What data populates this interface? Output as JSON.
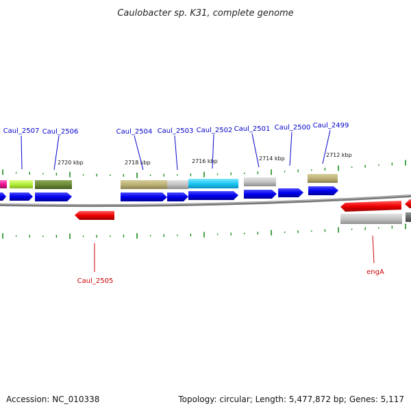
{
  "title": "Caulobacter sp. K31, complete genome",
  "footer": {
    "accession": "Accession: NC_010338",
    "summary": "Topology: circular; Length: 5,477,872 bp; Genes: 5,117"
  },
  "colors": {
    "forward_gene": "#0000ee",
    "reverse_gene": "#ee0000",
    "forward_label": "#0000cc",
    "reverse_label": "#cc0000",
    "backbone": "#777777",
    "tick": "#1a8a1a"
  },
  "scale_labels": [
    "2720 kbp",
    "2718 kbp",
    "2716 kbp",
    "2714 kbp",
    "2712 kbp"
  ],
  "forward_labels": [
    "Caul_2507",
    "Caul_2506",
    "Caul_2504",
    "Caul_2503",
    "Caul_2502",
    "Caul_2501",
    "Caul_2500",
    "Caul_2499"
  ],
  "reverse_labels": [
    "Caul_2505",
    "engA"
  ]
}
